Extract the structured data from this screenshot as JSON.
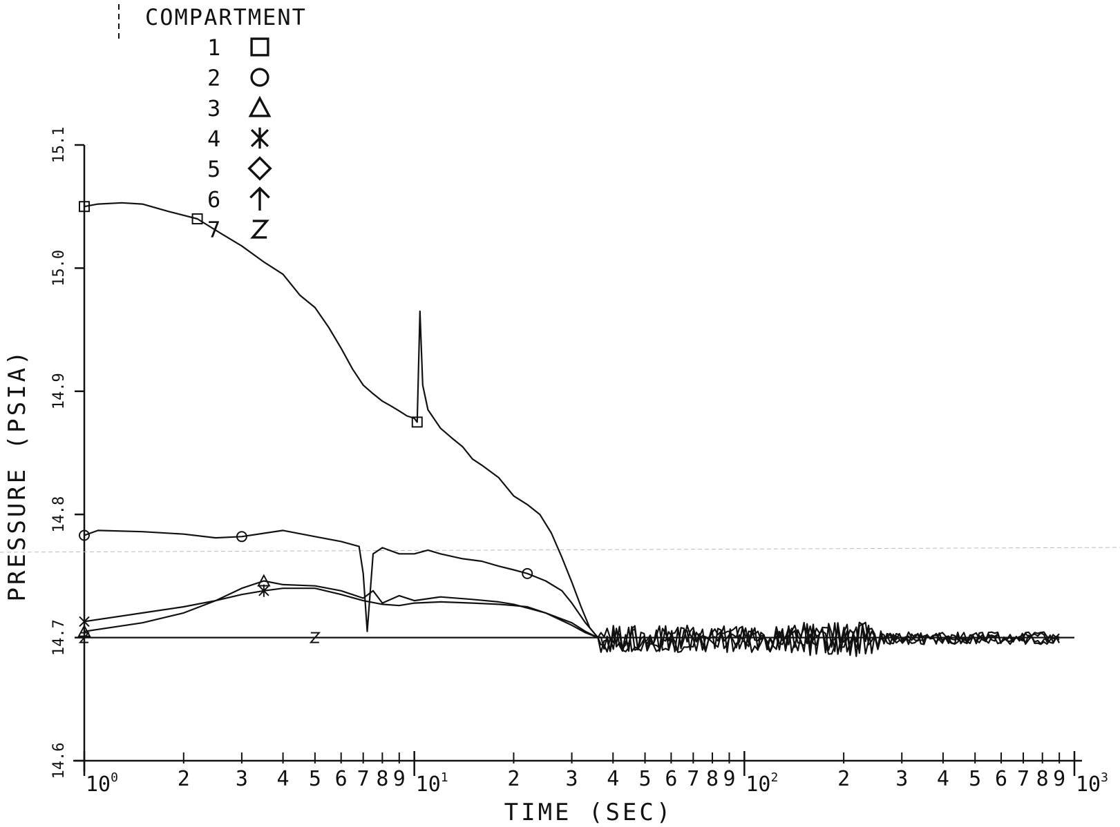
{
  "chart_data": {
    "type": "line",
    "title": "",
    "xlabel": "TIME (SEC)",
    "ylabel": "PRESSURE (PSIA)",
    "x_scale": "log",
    "xlim": [
      1,
      1000
    ],
    "ylim": [
      14.6,
      15.1
    ],
    "y_ticks": [
      {
        "value": 14.6,
        "label": "14.6"
      },
      {
        "value": 14.7,
        "label": "14.7"
      },
      {
        "value": 14.8,
        "label": "14.8"
      },
      {
        "value": 14.9,
        "label": "14.9"
      },
      {
        "value": 15.0,
        "label": "15.0"
      },
      {
        "value": 15.1,
        "label": "15.1"
      }
    ],
    "x_major_ticks": [
      {
        "value": 1,
        "base": "10",
        "exp": "0"
      },
      {
        "value": 10,
        "base": "10",
        "exp": "1"
      },
      {
        "value": 100,
        "base": "10",
        "exp": "2"
      },
      {
        "value": 1000,
        "base": "10",
        "exp": "3"
      }
    ],
    "x_minor_labels": [
      "2",
      "3",
      "4",
      "5",
      "6",
      "7",
      "8",
      "9"
    ],
    "grid": false,
    "legend": {
      "title": "COMPARTMENT",
      "placement": "top-left",
      "entries": [
        {
          "label": "1",
          "symbol": "square"
        },
        {
          "label": "2",
          "symbol": "circle"
        },
        {
          "label": "3",
          "symbol": "triangle"
        },
        {
          "label": "4",
          "symbol": "x"
        },
        {
          "label": "5",
          "symbol": "diamond"
        },
        {
          "label": "6",
          "symbol": "arrow"
        },
        {
          "label": "7",
          "symbol": "Z"
        }
      ]
    },
    "series": [
      {
        "name": "1",
        "symbol": "square",
        "x": [
          1,
          1.1,
          1.3,
          1.5,
          1.8,
          2.2,
          2.6,
          3,
          3.5,
          4,
          4.5,
          5,
          5.5,
          6,
          6.5,
          7,
          7.5,
          8,
          8.5,
          9,
          9.5,
          10,
          10.2,
          10.4,
          10.6,
          11,
          12,
          13,
          14,
          15,
          16,
          18,
          20,
          22,
          24,
          26,
          28,
          30,
          32,
          34,
          36
        ],
        "y": [
          15.05,
          15.052,
          15.053,
          15.052,
          15.046,
          15.04,
          15.028,
          15.018,
          15.005,
          14.995,
          14.978,
          14.968,
          14.952,
          14.935,
          14.918,
          14.905,
          14.898,
          14.892,
          14.888,
          14.884,
          14.88,
          14.878,
          14.875,
          14.965,
          14.905,
          14.885,
          14.87,
          14.862,
          14.855,
          14.845,
          14.84,
          14.83,
          14.815,
          14.808,
          14.8,
          14.785,
          14.765,
          14.745,
          14.725,
          14.708,
          14.7
        ]
      },
      {
        "name": "2",
        "symbol": "circle",
        "x": [
          1,
          1.1,
          1.5,
          2,
          2.5,
          3,
          4,
          5,
          6,
          6.8,
          7,
          7.2,
          7.5,
          8,
          9,
          10,
          11,
          12,
          14,
          16,
          18,
          20,
          22,
          25,
          28,
          30,
          33,
          36
        ],
        "y": [
          14.783,
          14.787,
          14.786,
          14.784,
          14.781,
          14.782,
          14.787,
          14.782,
          14.778,
          14.774,
          14.752,
          14.705,
          14.768,
          14.773,
          14.768,
          14.768,
          14.771,
          14.768,
          14.764,
          14.762,
          14.758,
          14.755,
          14.752,
          14.746,
          14.738,
          14.728,
          14.712,
          14.7
        ]
      },
      {
        "name": "3",
        "symbol": "triangle",
        "x": [
          1,
          1.5,
          2,
          2.5,
          3,
          3.5,
          4,
          5,
          6,
          7,
          7.5,
          8,
          9,
          10,
          12,
          15,
          18,
          20,
          25,
          30,
          33,
          36
        ],
        "y": [
          14.705,
          14.712,
          14.72,
          14.73,
          14.74,
          14.746,
          14.743,
          14.742,
          14.738,
          14.732,
          14.738,
          14.728,
          14.734,
          14.73,
          14.733,
          14.731,
          14.729,
          14.727,
          14.72,
          14.712,
          14.705,
          14.7
        ]
      },
      {
        "name": "4",
        "symbol": "x",
        "x": [
          1,
          1.5,
          2,
          2.5,
          3,
          3.5,
          4,
          5,
          6,
          7,
          8,
          9,
          10,
          12,
          15,
          18,
          20,
          22,
          25,
          30,
          33,
          36
        ],
        "y": [
          14.713,
          14.72,
          14.725,
          14.73,
          14.735,
          14.738,
          14.74,
          14.74,
          14.735,
          14.73,
          14.727,
          14.726,
          14.728,
          14.729,
          14.728,
          14.727,
          14.726,
          14.725,
          14.72,
          14.71,
          14.704,
          14.7
        ]
      },
      {
        "name": "7",
        "symbol": "Z",
        "x": [
          1,
          2,
          5,
          10,
          20,
          36,
          100,
          1000
        ],
        "y": [
          14.7,
          14.7,
          14.7,
          14.7,
          14.7,
          14.7,
          14.7,
          14.7
        ]
      }
    ]
  }
}
